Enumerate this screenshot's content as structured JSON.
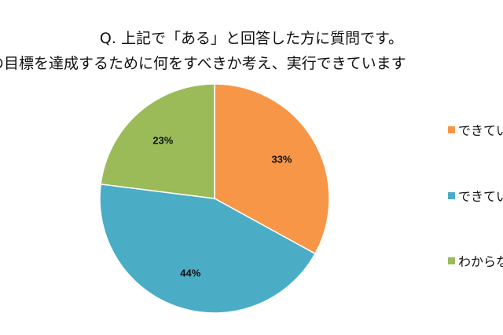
{
  "chart_data": {
    "type": "pie",
    "title_line1": "Q. 上記で「ある」と回答した方に質問です。",
    "title_line2": "の目標を達成するために何をすべきか考え、実行できています",
    "slices": [
      {
        "label": "できてい",
        "value": 33,
        "data_label": "33%",
        "color": "#F79646"
      },
      {
        "label": "できてい",
        "value": 44,
        "data_label": "44%",
        "color": "#4BACC6"
      },
      {
        "label": "わからな",
        "value": 23,
        "data_label": "23%",
        "color": "#9BBB59"
      }
    ],
    "legend_position": "right"
  }
}
